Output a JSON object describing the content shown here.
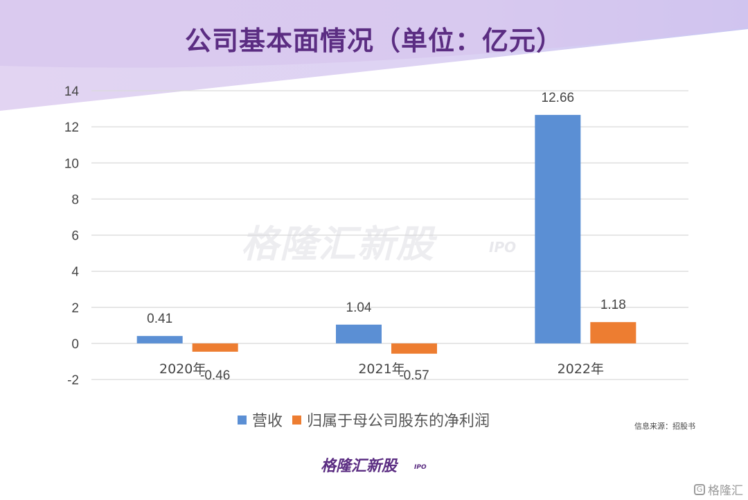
{
  "title": "公司基本面情况（单位：亿元）",
  "watermark": {
    "text": "格隆汇新股",
    "sub": "IPO"
  },
  "source": "信息来源：招股书",
  "brand": {
    "text": "格隆汇新股",
    "sub": "IPO"
  },
  "corner": {
    "text": "格隆汇",
    "icon": "G"
  },
  "colors": {
    "revenue": "#5b8fd4",
    "net_profit": "#ed7d31",
    "title": "#5b2d82",
    "grid": "#d9d9d9"
  },
  "chart_data": {
    "type": "bar",
    "categories": [
      "2020年",
      "2021年",
      "2022年"
    ],
    "series": [
      {
        "name": "营收",
        "values": [
          0.41,
          1.04,
          12.66
        ]
      },
      {
        "name": "归属于母公司股东的净利润",
        "values": [
          -0.46,
          -0.57,
          1.18
        ]
      }
    ],
    "data_labels": [
      [
        "0.41",
        "1.04",
        "12.66"
      ],
      [
        "-0.46",
        "-0.57",
        "1.18"
      ]
    ],
    "ylim": [
      -2,
      14
    ],
    "yticks": [
      -2,
      0,
      2,
      4,
      6,
      8,
      10,
      12,
      14
    ],
    "grid": true,
    "legend": "bottom"
  }
}
